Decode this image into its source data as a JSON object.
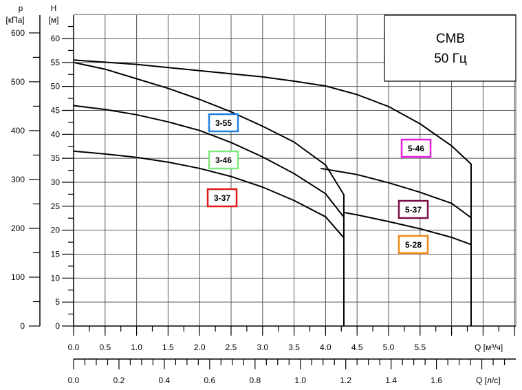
{
  "chart_data": {
    "type": "line",
    "title_box": {
      "line1": "CMB",
      "line2": "50 Гц"
    },
    "x_axis_primary": {
      "label": "Q [м³/ч]",
      "range": [
        0,
        7.0
      ],
      "ticks": [
        "0.0",
        "0.5",
        "1.0",
        "1.5",
        "2.0",
        "2.5",
        "3.0",
        "3.5",
        "4.0",
        "4.5",
        "5.0",
        "5.5"
      ]
    },
    "x_axis_secondary": {
      "label": "Q [л/с]",
      "ticks": [
        "0.0",
        "0.2",
        "0.4",
        "0.6",
        "0.8",
        "1.0",
        "1.2",
        "1.4",
        "1.6"
      ]
    },
    "y_axis_head": {
      "label_top": "H",
      "unit": "[м]",
      "range": [
        0,
        65
      ],
      "ticks": [
        "0",
        "5",
        "10",
        "15",
        "20",
        "25",
        "30",
        "35",
        "40",
        "45",
        "50",
        "55",
        "60"
      ]
    },
    "y_axis_pressure": {
      "label_top": "p",
      "unit": "[кПа]",
      "ticks": [
        "0",
        "100",
        "200",
        "300",
        "400",
        "500",
        "600"
      ]
    },
    "grid": true,
    "series": [
      {
        "name": "5-46",
        "color": "#e81ee0",
        "x": [
          0,
          1.0,
          2.0,
          3.0,
          3.5,
          4.0,
          4.5,
          5.0,
          5.5,
          6.0,
          6.31,
          6.31
        ],
        "y": [
          55.5,
          54.6,
          53.3,
          52.0,
          51.1,
          50.1,
          48.3,
          45.8,
          42.2,
          37.6,
          33.8,
          0
        ]
      },
      {
        "name": "3-55",
        "color": "#1f7fe0",
        "x": [
          0,
          0.5,
          1.0,
          1.5,
          2.0,
          2.5,
          3.0,
          3.5,
          4.0,
          4.29,
          4.29
        ],
        "y": [
          55.0,
          53.6,
          51.6,
          49.6,
          47.3,
          44.7,
          41.7,
          38.4,
          33.6,
          27.4,
          0
        ]
      },
      {
        "name": "3-46",
        "color": "#7de87d",
        "x": [
          0,
          0.5,
          1.0,
          1.5,
          2.0,
          2.5,
          3.0,
          3.5,
          4.0,
          4.29
        ],
        "y": [
          46.0,
          45.2,
          44.1,
          42.6,
          40.8,
          38.3,
          35.3,
          31.8,
          27.6,
          22.7
        ]
      },
      {
        "name": "3-37",
        "color": "#e01a1a",
        "x": [
          0,
          0.5,
          1.0,
          1.5,
          2.0,
          2.5,
          3.0,
          3.5,
          4.0,
          4.29
        ],
        "y": [
          36.5,
          35.9,
          35.2,
          34.2,
          32.9,
          31.2,
          29.0,
          26.2,
          22.8,
          18.4
        ]
      },
      {
        "name": "5-37",
        "color": "#7a0e45",
        "x": [
          3.92,
          4.5,
          5.0,
          5.5,
          6.0,
          6.31
        ],
        "y": [
          32.9,
          31.6,
          29.9,
          27.9,
          25.6,
          22.6
        ]
      },
      {
        "name": "5-28",
        "color": "#f08a1a",
        "x": [
          4.29,
          4.5,
          5.0,
          5.5,
          6.0,
          6.31
        ],
        "y": [
          23.7,
          23.2,
          21.8,
          20.3,
          18.5,
          17.0
        ]
      }
    ]
  }
}
